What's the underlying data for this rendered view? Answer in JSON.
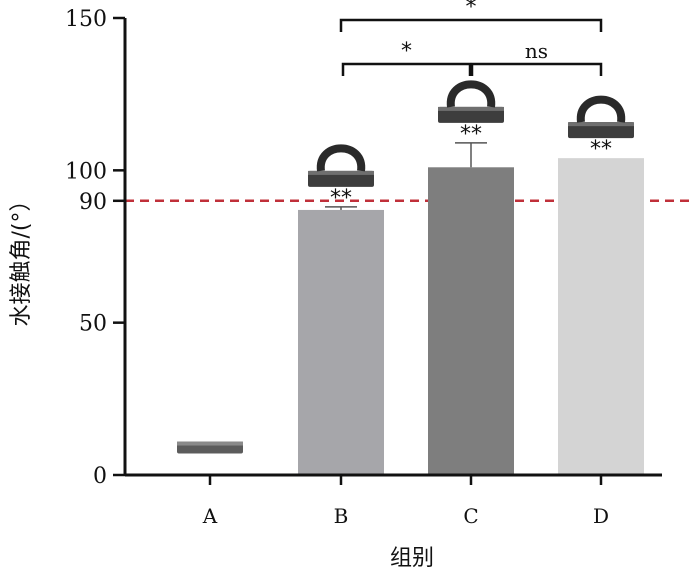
{
  "chart_data": {
    "type": "bar",
    "categories": [
      "A",
      "B",
      "C",
      "D"
    ],
    "values": [
      10,
      87,
      101,
      104
    ],
    "errors": [
      0,
      1,
      8,
      0
    ],
    "bar_colors": [
      "#5a5a5a",
      "#a6a6aa",
      "#7e7e7e",
      "#d4d4d4"
    ],
    "sample_icons": [
      "flat-sample-icon",
      "droplet-sample-icon",
      "droplet-sample-icon",
      "droplet-sample-icon"
    ],
    "xlabel": "组别",
    "ylabel": "水接触角/(°）",
    "ylim": [
      0,
      150
    ],
    "yticks": [
      0,
      50,
      90,
      100,
      150
    ],
    "reference_line": {
      "value": 90,
      "color": "#c0303a",
      "style": "dashed"
    },
    "bar_annotations": [
      "",
      "**",
      "**",
      "**"
    ],
    "comparisons": [
      {
        "from": "B",
        "to": "D",
        "label": "*"
      },
      {
        "from": "B",
        "to": "C",
        "label": "*"
      },
      {
        "from": "C",
        "to": "D",
        "label": "ns"
      }
    ],
    "grid": false,
    "legend": "none"
  }
}
